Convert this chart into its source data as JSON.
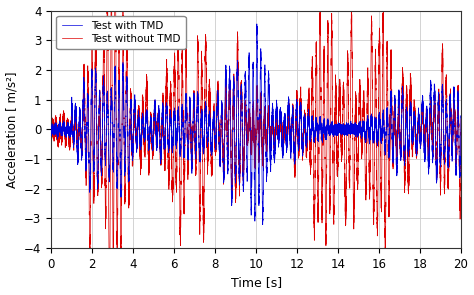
{
  "title": "",
  "xlabel": "Time [s]",
  "ylabel": "Acceleration [ m/s²]",
  "xlim": [
    0,
    20
  ],
  "ylim": [
    -4,
    4
  ],
  "xticks": [
    0,
    2,
    4,
    6,
    8,
    10,
    12,
    14,
    16,
    18,
    20
  ],
  "yticks": [
    -4,
    -3,
    -2,
    -1,
    0,
    1,
    2,
    3,
    4
  ],
  "legend": [
    "Test with TMD",
    "Test without TMD"
  ],
  "color_with_tmd": "#0000dd",
  "color_without_tmd": "#dd0000",
  "linewidth_with": 0.5,
  "linewidth_without": 0.5,
  "background_color": "#ffffff",
  "grid_color": "#cccccc",
  "duration": 20.0,
  "fs": 1000,
  "seed": 7
}
